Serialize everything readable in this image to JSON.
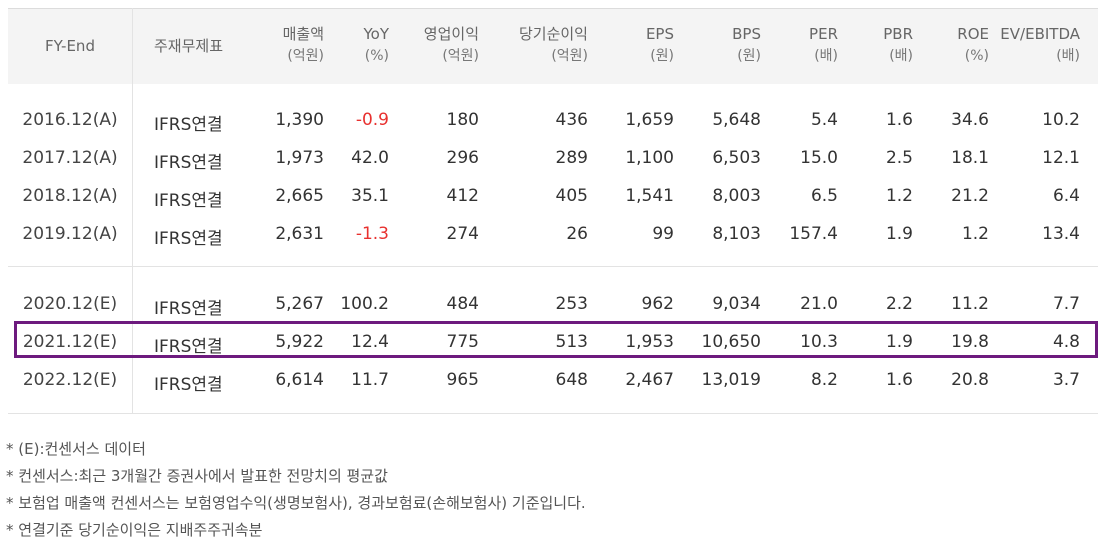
{
  "header": {
    "fy": "FY-End",
    "acct": "주재무제표",
    "cols": [
      {
        "label": "매출액",
        "unit": "(억원)"
      },
      {
        "label": "YoY",
        "unit": "(%)"
      },
      {
        "label": "영업이익",
        "unit": "(억원)"
      },
      {
        "label": "당기순이익",
        "unit": "(억원)"
      },
      {
        "label": "EPS",
        "unit": "(원)"
      },
      {
        "label": "BPS",
        "unit": "(원)"
      },
      {
        "label": "PER",
        "unit": "(배)"
      },
      {
        "label": "PBR",
        "unit": "(배)"
      },
      {
        "label": "ROE",
        "unit": "(%)"
      },
      {
        "label": "EV/EBITDA",
        "unit": "(배)"
      }
    ]
  },
  "rows": [
    {
      "fy": "2016.12(A)",
      "acct": "IFRS연결",
      "v": [
        "1,390",
        "-0.9",
        "180",
        "436",
        "1,659",
        "5,648",
        "5.4",
        "1.6",
        "34.6",
        "10.2"
      ]
    },
    {
      "fy": "2017.12(A)",
      "acct": "IFRS연결",
      "v": [
        "1,973",
        "42.0",
        "296",
        "289",
        "1,100",
        "6,503",
        "15.0",
        "2.5",
        "18.1",
        "12.1"
      ]
    },
    {
      "fy": "2018.12(A)",
      "acct": "IFRS연결",
      "v": [
        "2,665",
        "35.1",
        "412",
        "405",
        "1,541",
        "8,003",
        "6.5",
        "1.2",
        "21.2",
        "6.4"
      ]
    },
    {
      "fy": "2019.12(A)",
      "acct": "IFRS연결",
      "v": [
        "2,631",
        "-1.3",
        "274",
        "26",
        "99",
        "8,103",
        "157.4",
        "1.9",
        "1.2",
        "13.4"
      ]
    },
    {
      "fy": "2020.12(E)",
      "acct": "IFRS연결",
      "v": [
        "5,267",
        "100.2",
        "484",
        "253",
        "962",
        "9,034",
        "21.0",
        "2.2",
        "11.2",
        "7.7"
      ]
    },
    {
      "fy": "2021.12(E)",
      "acct": "IFRS연결",
      "v": [
        "5,922",
        "12.4",
        "775",
        "513",
        "1,953",
        "10,650",
        "10.3",
        "1.9",
        "19.8",
        "4.8"
      ]
    },
    {
      "fy": "2022.12(E)",
      "acct": "IFRS연결",
      "v": [
        "6,614",
        "11.7",
        "965",
        "648",
        "2,467",
        "13,019",
        "8.2",
        "1.6",
        "20.8",
        "3.7"
      ]
    }
  ],
  "notes": [
    "* (E):컨센서스 데이터",
    "* 컨센서스:최근 3개월간 증권사에서 발표한 전망치의 평균값",
    "* 보험업 매출액 컨센서스는 보험영업수익(생명보험사), 경과보험료(손해보험사) 기준입니다.",
    "* 연결기준 당기순이익은 지배주주귀속분"
  ],
  "colors": {
    "negative": "#e8312f",
    "highlight_border": "#6d1a7e",
    "header_bg": "#f4f4f4"
  }
}
